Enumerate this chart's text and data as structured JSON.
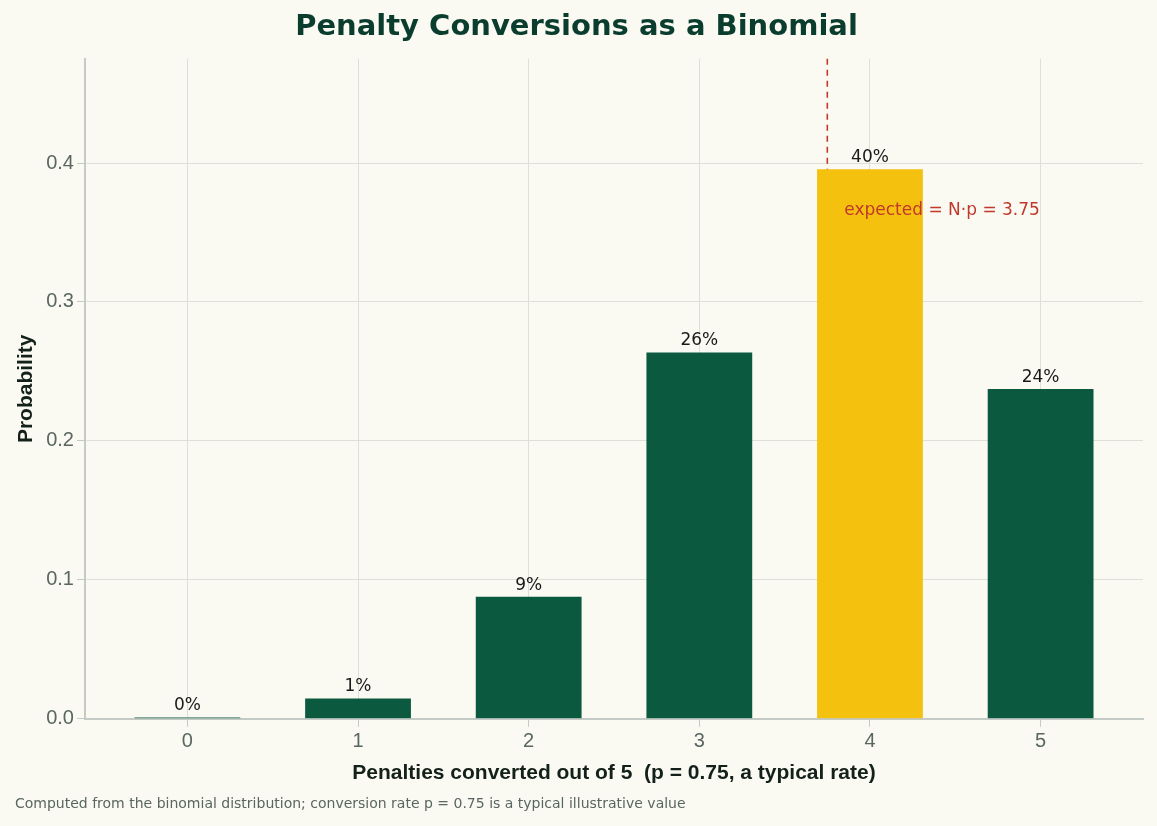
{
  "chart_data": {
    "type": "bar",
    "title": "Penalty Conversions as a Binomial",
    "xlabel": "Penalties converted out of 5  (p = 0.75, a typical rate)",
    "ylabel": "Probability",
    "x": [
      0,
      1,
      2,
      3,
      4,
      5
    ],
    "values": [
      0.001,
      0.0146,
      0.0879,
      0.2637,
      0.3955,
      0.2373
    ],
    "colors": [
      "#0b5a40",
      "#0b5a40",
      "#0b5a40",
      "#0b5a40",
      "#f4c10f",
      "#0b5a40"
    ],
    "value_labels": [
      "0%",
      "1%",
      "9%",
      "26%",
      "40%",
      "24%"
    ],
    "xlim": [
      -0.6,
      5.6
    ],
    "xticks": [
      0,
      1,
      2,
      3,
      4,
      5
    ],
    "ylim": [
      0,
      0.475
    ],
    "yticks": [
      {
        "value": 0,
        "label": "0.0"
      },
      {
        "value": 0.1,
        "label": "0.1"
      },
      {
        "value": 0.2,
        "label": "0.2"
      },
      {
        "value": 0.3,
        "label": "0.3"
      },
      {
        "value": 0.4,
        "label": "0.4"
      }
    ],
    "grid": true,
    "legend": false,
    "ref_lines": [
      {
        "axis": "x",
        "value": 3.75,
        "label": "expected = N·p = 3.75",
        "color": "#c0392b",
        "line_style": "dashed"
      }
    ],
    "annotations": [
      "Computed from the binomial distribution; conversion rate p = 0.75 is a typical illustrative value"
    ]
  }
}
